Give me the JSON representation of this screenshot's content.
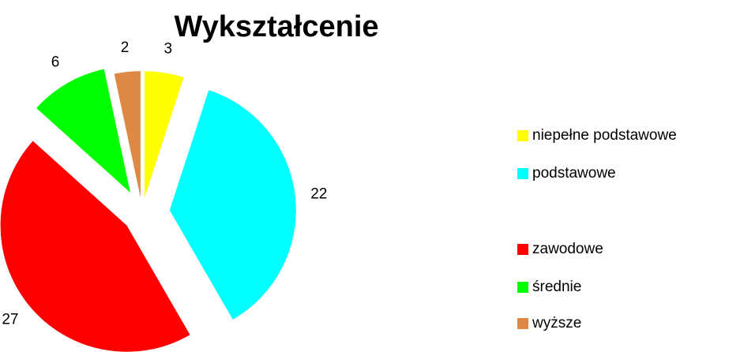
{
  "chart_data": {
    "type": "pie",
    "title": "Wykształcenie",
    "categories": [
      "niepełne podstawowe",
      "podstawowe",
      "zawodowe",
      "średnie",
      "wyższe"
    ],
    "values": [
      3,
      22,
      27,
      6,
      2
    ],
    "colors": [
      "#ffff00",
      "#00ffff",
      "#ff0000",
      "#00ff00",
      "#dd8844"
    ],
    "legend": "right"
  }
}
